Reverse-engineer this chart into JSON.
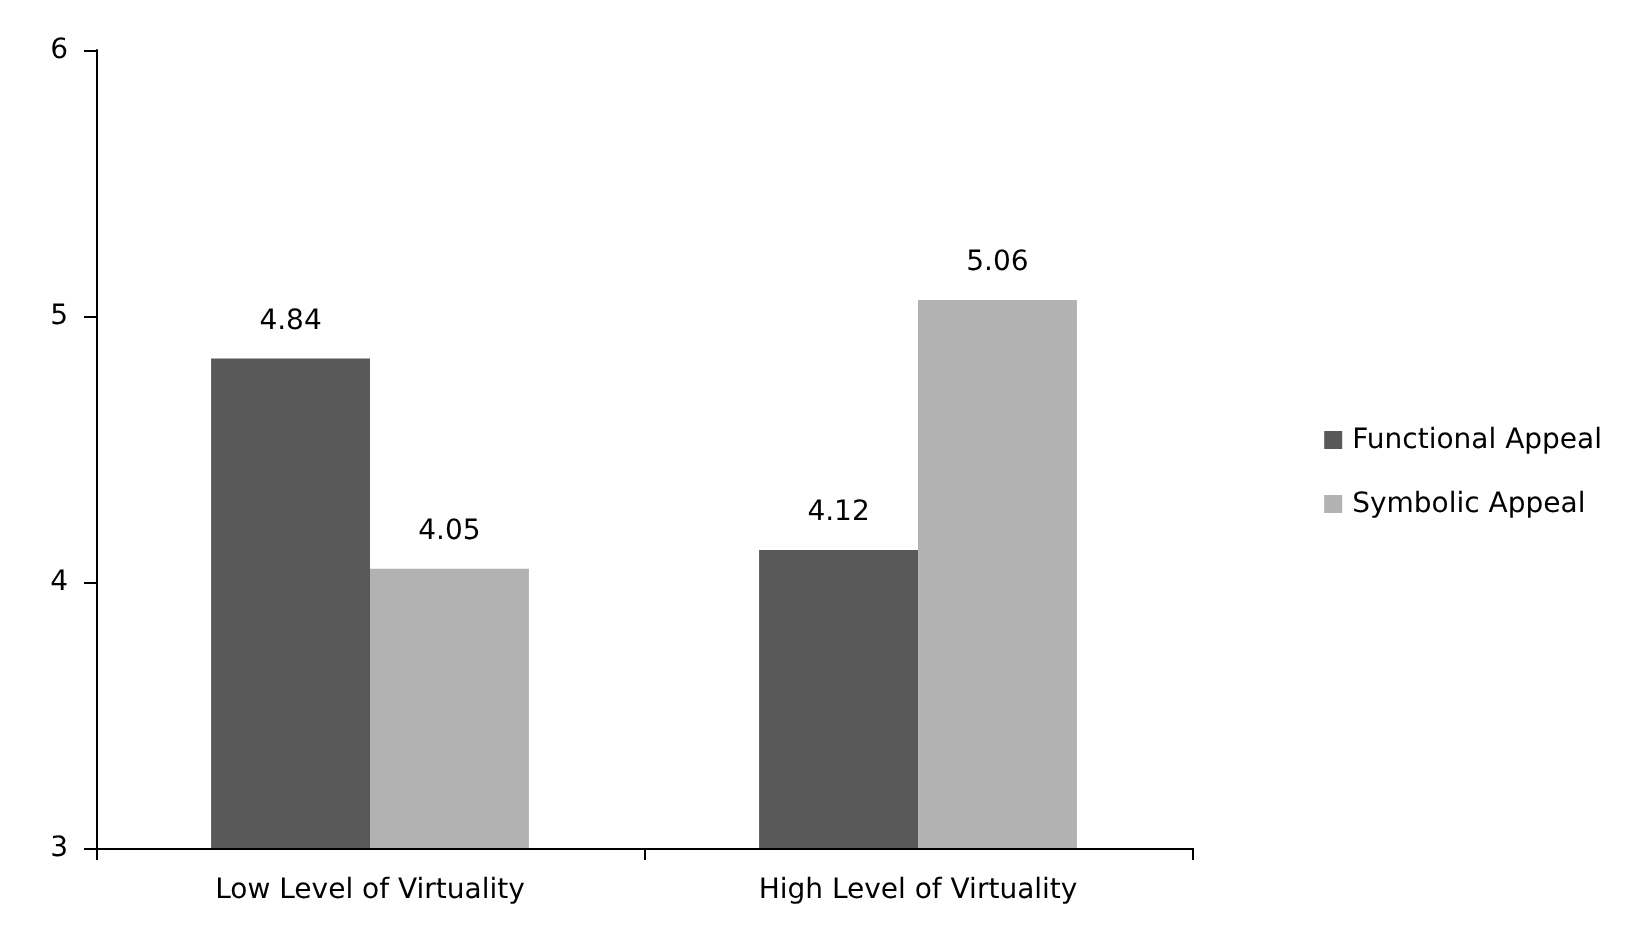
{
  "chart_data": {
    "type": "bar",
    "categories": [
      "Low Level of Virtuality",
      "High Level of Virtuality"
    ],
    "series": [
      {
        "name": "Functional Appeal",
        "color": "#595959",
        "values": [
          4.84,
          4.12
        ]
      },
      {
        "name": "Symbolic Appeal",
        "color": "#b2b2b2",
        "values": [
          4.05,
          5.06
        ]
      }
    ],
    "ylim": [
      3,
      6
    ],
    "yticks": [
      3,
      4,
      5,
      6
    ],
    "grid": false,
    "legend": "right",
    "data_labels": true
  }
}
